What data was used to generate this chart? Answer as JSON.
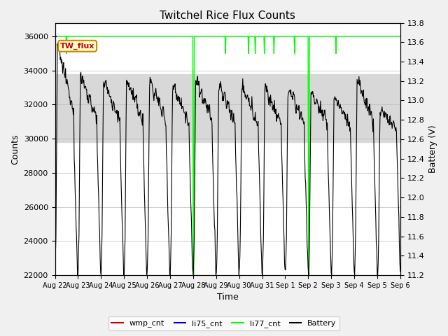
{
  "title": "Twitchel Rice Flux Counts",
  "xlabel": "Time",
  "ylabel_left": "Counts",
  "ylabel_right": "Battery (V)",
  "ylim_left": [
    22000,
    36800
  ],
  "ylim_right": [
    11.2,
    13.8
  ],
  "yticks_left": [
    22000,
    24000,
    26000,
    28000,
    30000,
    32000,
    34000,
    36000
  ],
  "yticks_right": [
    11.2,
    11.4,
    11.6,
    11.8,
    12.0,
    12.2,
    12.4,
    12.6,
    12.8,
    13.0,
    13.2,
    13.4,
    13.6,
    13.8
  ],
  "x_ticklabels": [
    "Aug 22",
    "Aug 23",
    "Aug 24",
    "Aug 25",
    "Aug 26",
    "Aug 27",
    "Aug 28",
    "Aug 29",
    "Aug 30",
    "Aug 31",
    "Sep 1",
    "Sep 2",
    "Sep 3",
    "Sep 4",
    "Sep 5",
    "Sep 6"
  ],
  "bg_color": "#f0f0f0",
  "plot_bg_color": "#ffffff",
  "shaded_band": [
    29800,
    33800
  ],
  "shaded_band_color": "#d8d8d8",
  "wmp_cnt_color": "#cc0000",
  "li75_cnt_color": "#0000cc",
  "li77_cnt_color": "#00ff00",
  "battery_color": "#000000",
  "tooltip_label": "TW_flux",
  "tooltip_bg": "#ffffcc",
  "tooltip_border": "#cc8800",
  "tooltip_text_color": "#cc0000"
}
